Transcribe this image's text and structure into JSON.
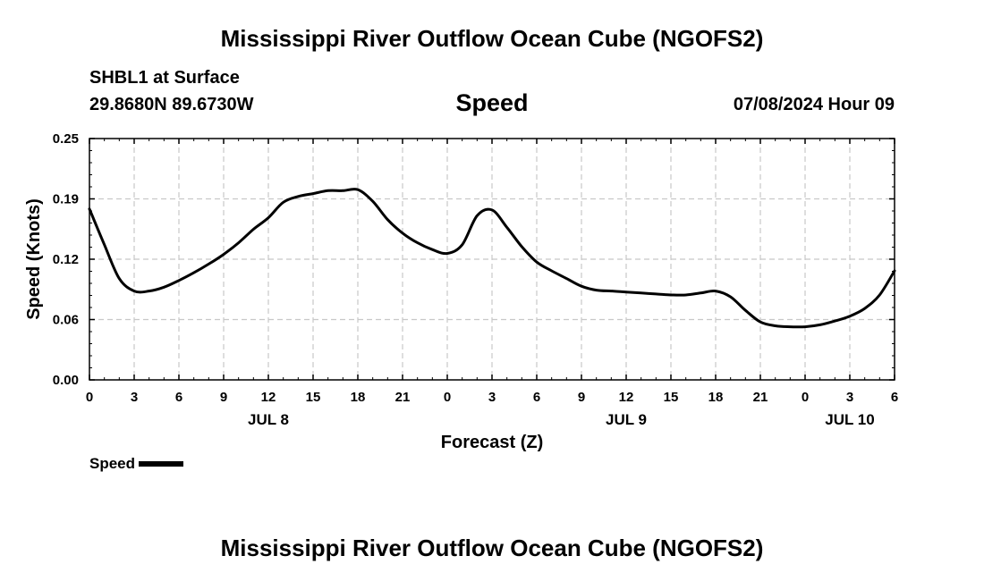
{
  "header": {
    "title": "Mississippi River Outflow Ocean Cube (NGOFS2)",
    "station": "SHBL1 at Surface",
    "coords": "29.8680N  89.6730W",
    "variable": "Speed",
    "datetime": "07/08/2024 Hour 09"
  },
  "footer": {
    "title": "Mississippi River Outflow Ocean Cube (NGOFS2)"
  },
  "legend": {
    "label": "Speed"
  },
  "chart_data": {
    "type": "line",
    "title": "Speed",
    "xlabel": "Forecast (Z)",
    "ylabel": "Speed (Knots)",
    "xlim": [
      0,
      54
    ],
    "ylim": [
      0,
      0.25
    ],
    "grid": true,
    "legend_position": "bottom-left",
    "x_ticks": [
      {
        "x": 0,
        "label": "0"
      },
      {
        "x": 3,
        "label": "3"
      },
      {
        "x": 6,
        "label": "6"
      },
      {
        "x": 9,
        "label": "9"
      },
      {
        "x": 12,
        "label": "12"
      },
      {
        "x": 15,
        "label": "15"
      },
      {
        "x": 18,
        "label": "18"
      },
      {
        "x": 21,
        "label": "21"
      },
      {
        "x": 24,
        "label": "0"
      },
      {
        "x": 27,
        "label": "3"
      },
      {
        "x": 30,
        "label": "6"
      },
      {
        "x": 33,
        "label": "9"
      },
      {
        "x": 36,
        "label": "12"
      },
      {
        "x": 39,
        "label": "15"
      },
      {
        "x": 42,
        "label": "18"
      },
      {
        "x": 45,
        "label": "21"
      },
      {
        "x": 48,
        "label": "0"
      },
      {
        "x": 51,
        "label": "3"
      },
      {
        "x": 54,
        "label": "6"
      }
    ],
    "y_ticks": [
      {
        "y": 0.0,
        "label": "0.00"
      },
      {
        "y": 0.0625,
        "label": "0.06"
      },
      {
        "y": 0.125,
        "label": "0.12"
      },
      {
        "y": 0.1875,
        "label": "0.19"
      },
      {
        "y": 0.25,
        "label": "0.25"
      }
    ],
    "date_labels": [
      {
        "x": 12,
        "label": "JUL 8"
      },
      {
        "x": 36,
        "label": "JUL 9"
      },
      {
        "x": 51,
        "label": "JUL 10"
      }
    ],
    "series": [
      {
        "name": "Speed",
        "color": "#000000",
        "x": [
          0,
          1,
          2,
          3,
          4,
          5,
          6,
          7,
          8,
          9,
          10,
          11,
          12,
          13,
          14,
          15,
          16,
          17,
          18,
          19,
          20,
          21,
          22,
          23,
          24,
          25,
          26,
          27,
          28,
          29,
          30,
          31,
          32,
          33,
          34,
          35,
          36,
          37,
          38,
          39,
          40,
          41,
          42,
          43,
          44,
          45,
          46,
          47,
          48,
          49,
          50,
          51,
          52,
          53,
          54
        ],
        "y": [
          0.177,
          0.14,
          0.105,
          0.092,
          0.092,
          0.096,
          0.103,
          0.111,
          0.12,
          0.13,
          0.142,
          0.156,
          0.168,
          0.184,
          0.19,
          0.193,
          0.196,
          0.196,
          0.197,
          0.185,
          0.166,
          0.152,
          0.142,
          0.135,
          0.131,
          0.14,
          0.17,
          0.176,
          0.158,
          0.138,
          0.122,
          0.113,
          0.105,
          0.097,
          0.093,
          0.092,
          0.091,
          0.09,
          0.089,
          0.088,
          0.088,
          0.09,
          0.092,
          0.086,
          0.072,
          0.06,
          0.056,
          0.055,
          0.055,
          0.057,
          0.061,
          0.066,
          0.074,
          0.088,
          0.113
        ]
      }
    ]
  }
}
